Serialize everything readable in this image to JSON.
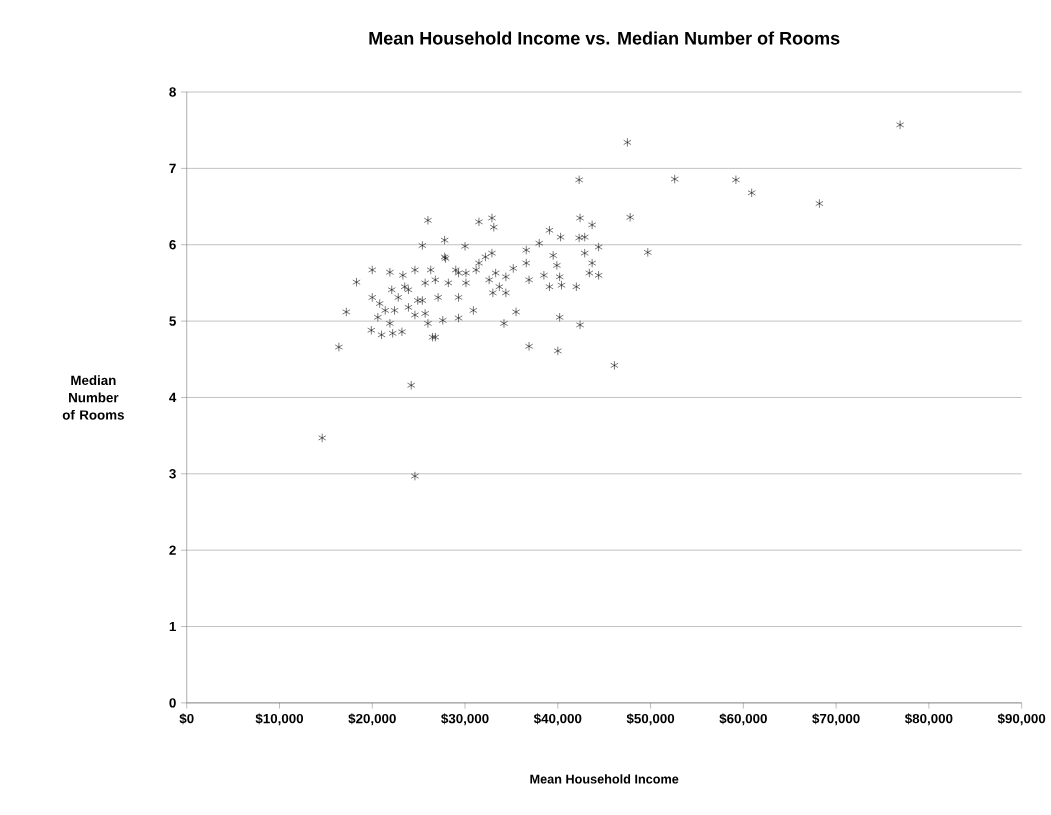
{
  "chart_data": {
    "type": "scatter",
    "title": "Mean Household Income  vs. Median Number of Rooms",
    "xlabel": "Mean Household Income",
    "ylabel": "Median Number of Rooms",
    "xlim": [
      0,
      90000
    ],
    "ylim": [
      0,
      8
    ],
    "xticks": [
      {
        "value": 0,
        "label": "$0"
      },
      {
        "value": 10000,
        "label": "$10,000"
      },
      {
        "value": 20000,
        "label": "$20,000"
      },
      {
        "value": 30000,
        "label": "$30,000"
      },
      {
        "value": 40000,
        "label": "$40,000"
      },
      {
        "value": 50000,
        "label": "$50,000"
      },
      {
        "value": 60000,
        "label": "$60,000"
      },
      {
        "value": 70000,
        "label": "$70,000"
      },
      {
        "value": 80000,
        "label": "$80,000"
      },
      {
        "value": 90000,
        "label": "$90,000"
      }
    ],
    "yticks": [
      0,
      1,
      2,
      3,
      4,
      5,
      6,
      7,
      8
    ],
    "grid": "y",
    "marker": "cross",
    "series": [
      {
        "color": "#000000",
        "x": [
          14600,
          24600,
          24200,
          16400,
          17200,
          18300,
          46100,
          36900,
          40000,
          42400,
          42300,
          47500,
          47800,
          49700,
          76900,
          52600,
          59200,
          60900,
          68200,
          44400,
          26000,
          31500,
          32900,
          33100,
          25400,
          27800,
          30000,
          27800,
          32900,
          36600,
          38000,
          39100,
          40300,
          42400,
          43700,
          42300,
          42900,
          42900,
          39500,
          36600,
          39900,
          43700,
          43400,
          44400,
          38500,
          40200,
          40400,
          42000,
          36900,
          39100,
          35200,
          31500,
          31200,
          33300,
          34400,
          32600,
          33700,
          33000,
          34400,
          30100,
          29000,
          28200,
          29300,
          26800,
          25700,
          24600,
          27100,
          24900,
          23900,
          30900,
          29300,
          27600,
          26000,
          26800,
          34200,
          35500,
          40200,
          20000,
          21900,
          23300,
          26300,
          20000,
          20800,
          22100,
          22800,
          23500,
          21400,
          22400,
          23900,
          25400,
          25700,
          20600,
          24600,
          21900,
          19900,
          21000,
          22200,
          23200,
          26500,
          32200,
          27900,
          29300,
          30100
        ],
        "values": [
          3.47,
          2.97,
          4.16,
          4.66,
          5.12,
          5.51,
          4.42,
          4.67,
          4.61,
          4.95,
          6.85,
          7.34,
          6.36,
          5.9,
          7.57,
          6.86,
          6.85,
          6.68,
          6.54,
          5.97,
          6.32,
          6.3,
          6.35,
          6.23,
          5.99,
          6.06,
          5.98,
          5.84,
          5.89,
          5.93,
          6.02,
          6.19,
          6.1,
          6.35,
          6.26,
          6.09,
          6.1,
          5.89,
          5.86,
          5.76,
          5.73,
          5.76,
          5.63,
          5.6,
          5.6,
          5.58,
          5.47,
          5.45,
          5.54,
          5.45,
          5.69,
          5.76,
          5.67,
          5.63,
          5.58,
          5.54,
          5.45,
          5.37,
          5.37,
          5.63,
          5.67,
          5.5,
          5.31,
          5.54,
          5.5,
          5.67,
          5.31,
          5.27,
          5.41,
          5.14,
          5.04,
          5.01,
          4.97,
          4.79,
          4.97,
          5.12,
          5.05,
          5.67,
          5.64,
          5.6,
          5.67,
          5.31,
          5.23,
          5.41,
          5.31,
          5.45,
          5.14,
          5.14,
          5.18,
          5.27,
          5.1,
          5.05,
          5.08,
          4.97,
          4.88,
          4.82,
          4.84,
          4.86,
          4.79,
          5.84,
          5.82,
          5.63,
          5.5
        ]
      }
    ]
  }
}
